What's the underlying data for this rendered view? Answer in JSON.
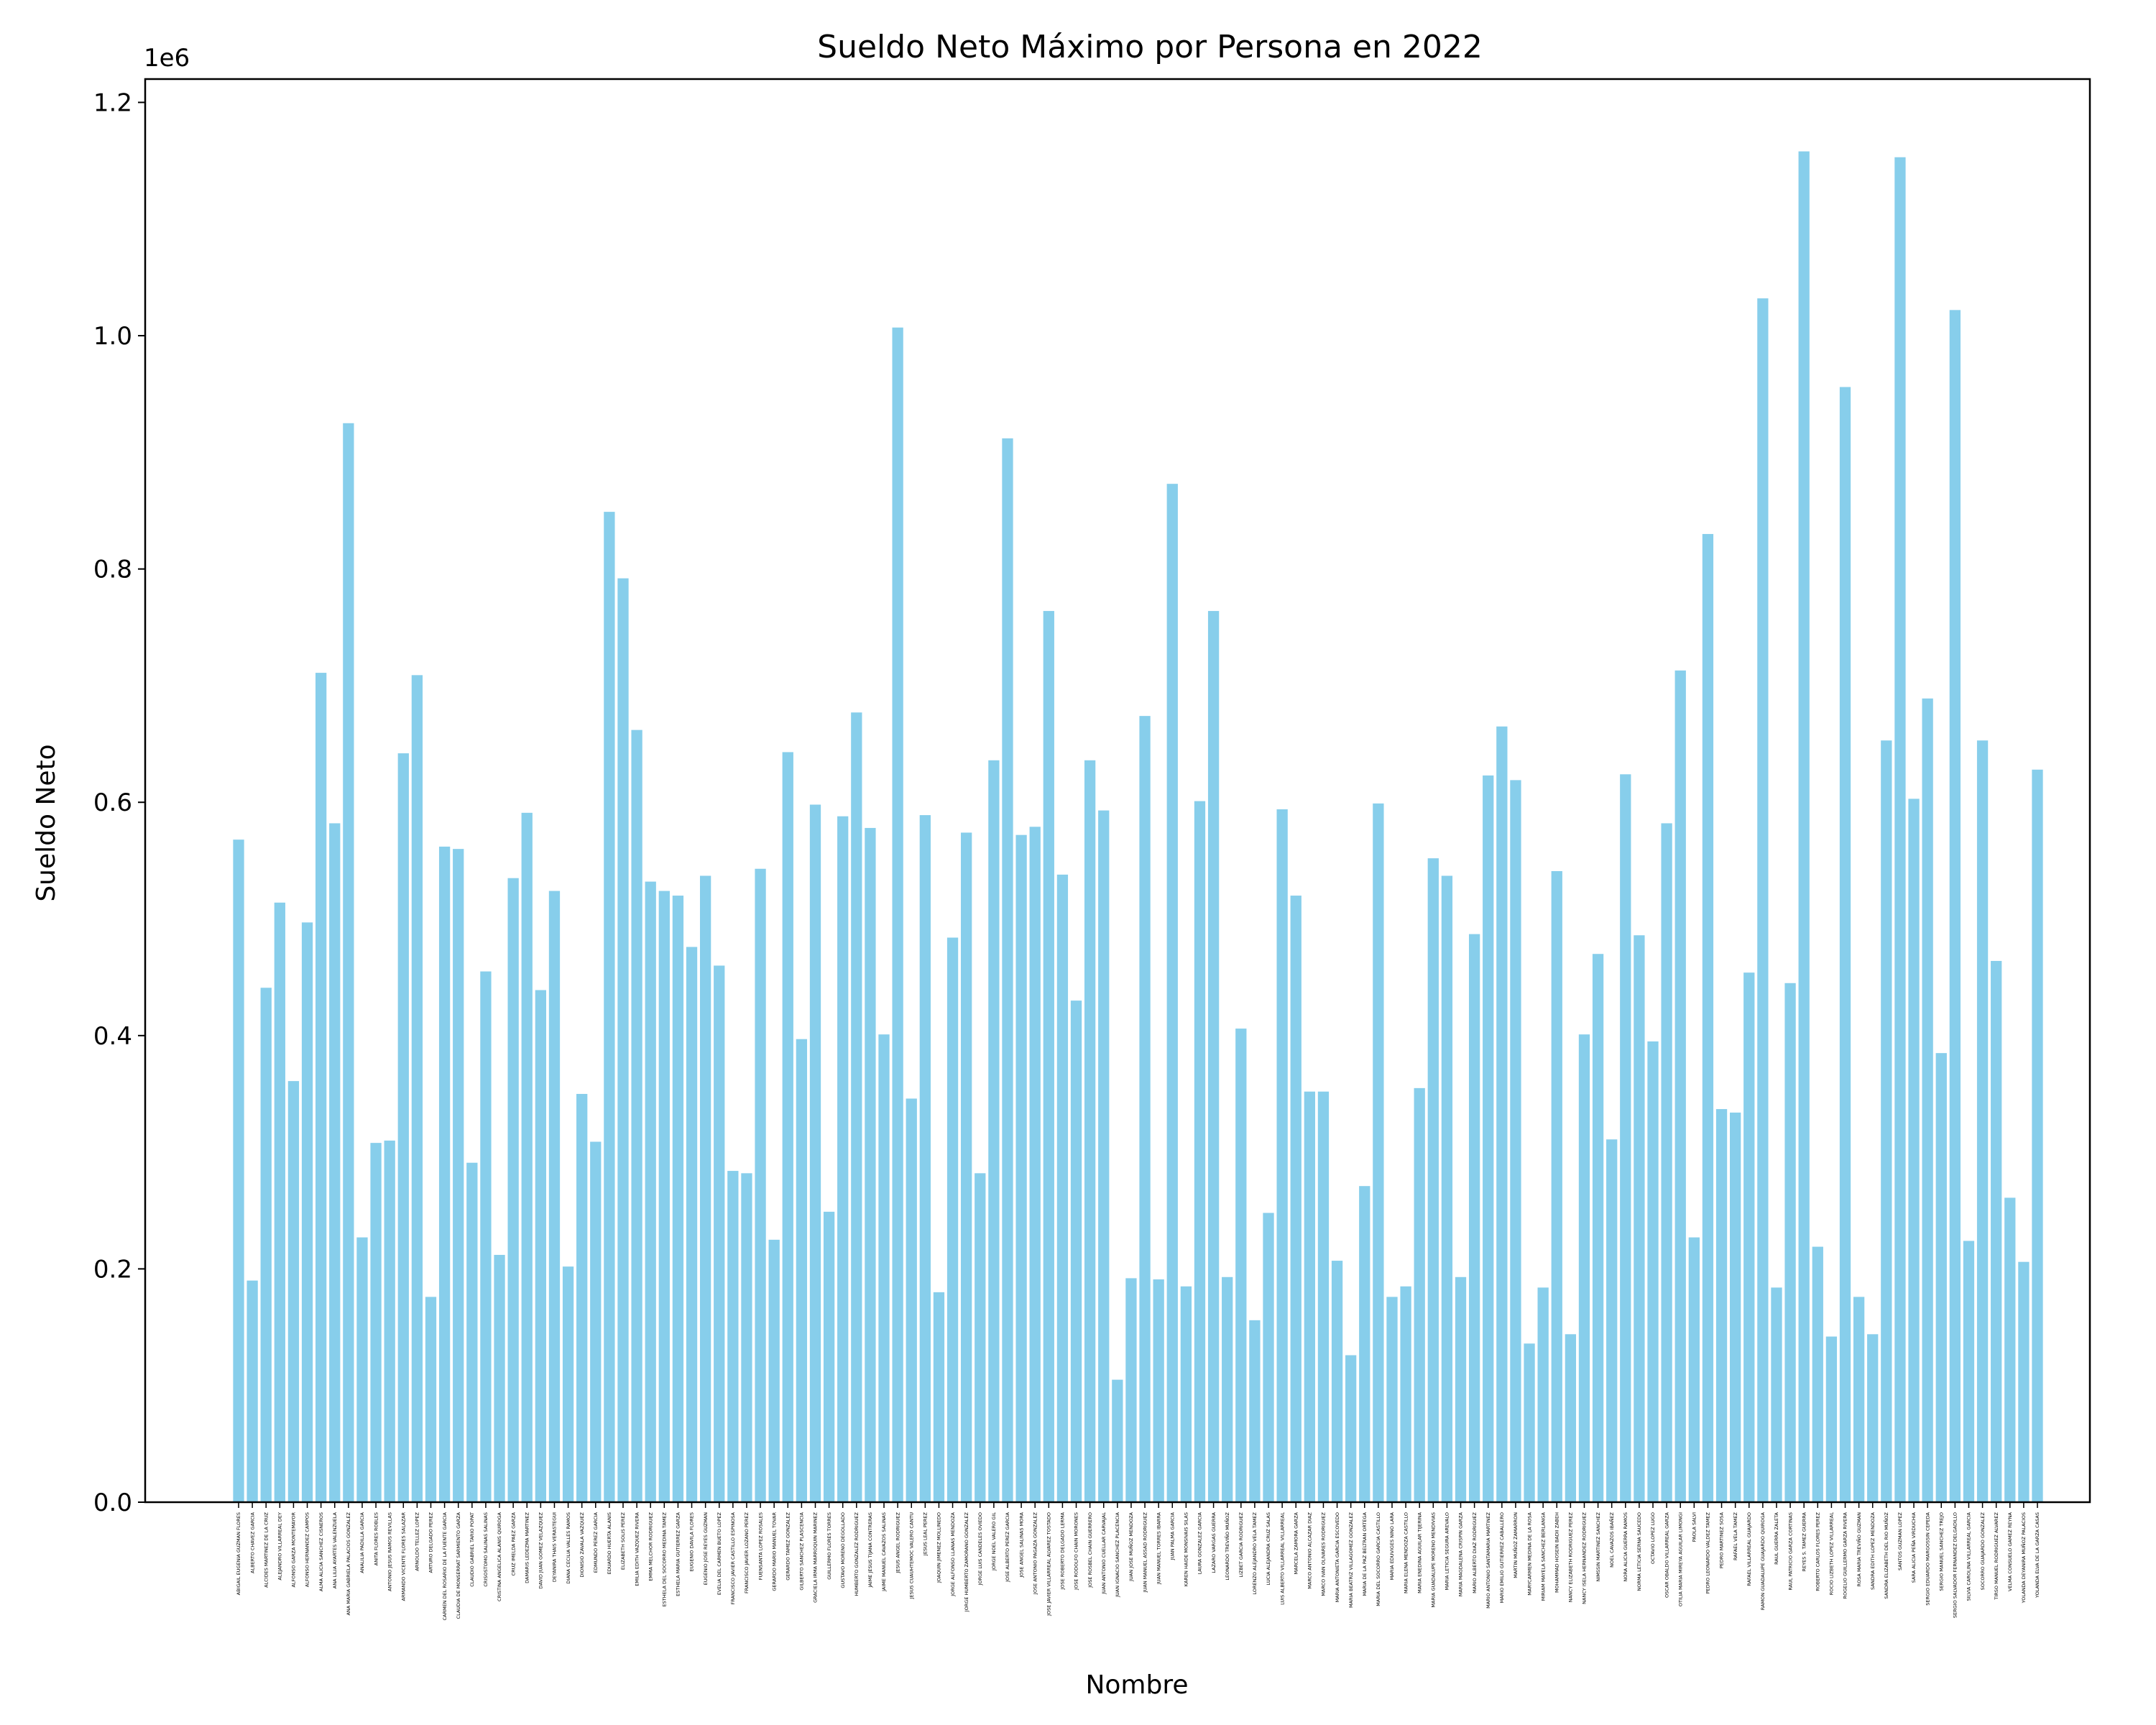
{
  "chart_data": {
    "type": "bar",
    "title": "Sueldo Neto Máximo por Persona en 2022",
    "xlabel": "Nombre",
    "ylabel": "Sueldo Neto",
    "y_offset_label": "1e6",
    "ylim": [
      0,
      1.22
    ],
    "yticks": [
      "0.0",
      "0.2",
      "0.4",
      "0.6",
      "0.8",
      "1.0",
      "1.2"
    ],
    "bar_color": "#87CEEB",
    "grid": false,
    "categories": [
      "ABIGAIL EUGENIA GUZMAN FLORES",
      "ALBERTO CHAVEZ GARCIA",
      "ALCIDES MARTINEZ DE LA CRUZ",
      "ALEJANDRO VILLARREAL DEY",
      "ALFONSO GARZA MONTEMAYOR",
      "ALFONSO HERNANDEZ CAMPOS",
      "ALMA ALICIA SANCHEZ CISNEROS",
      "ANA LILIA AYARTES VALENZUELA",
      "ANA MARIA GABRIELA PALACIOS GONZALEZ",
      "ANALILIA PADILLA GARCIA",
      "ANITA FLORES ROBLES",
      "ANTONIO JESUS RAMOS REVILLAS",
      "ARMANDO VICENTE FLORES SALAZAR",
      "ARNOLDO TELLEZ LOPEZ",
      "ARTURO DELGADO PEREZ",
      "CARMEN DEL ROSARIO DE LA FUENTE GARCIA",
      "CLAUDIA DE MONSERRAT SARMIENTO GARZA",
      "CLAUDIO GABRIEL TARIO POPAT",
      "CRISOSTOMO SALINAS SALINAS",
      "CRISTINA ANGELICA ALANIS QUIROGA",
      "CRUZ IMELDA PAEZ GARZA",
      "DAMARIS LEDEZMA MARTINEZ",
      "DAVID JUAN GOMEZ VELAZQUEZ",
      "DEYANIRA THAIS VERASTEGUI",
      "DIANA CECILIA VALLES RAMOS",
      "DIONISIO ZAVALA VAZQUEZ",
      "EDMUNDO PEREZ GARCIA",
      "EDUARDO HUERTA ALANIS",
      "ELIZABETH SOLIS PEREZ",
      "EMILIA EDITH VAZQUEZ RIVERA",
      "EMMA MELCHOR RODRIGUEZ",
      "ESTHELA DEL SOCORRO MEDINA TAMEZ",
      "ESTHELA MARIA GUTIERREZ GARZA",
      "EUGENIO DAVILA FLORES",
      "EUGENIO JOSE REYES GUZMAN",
      "EVELIA DEL CARMEN BUETO LOPEZ",
      "FRANCISCO JAVIER CASTILLO ESPINOSA",
      "FRANCISCO JAVIER LOZANO PEREZ",
      "FUENSANTA LOPEZ ROSALES",
      "GERARDO MARIO MANUEL TOVAR",
      "GERARDO TAMEZ GONZALEZ",
      "GILBERTO SANCHEZ PLASCENCIA",
      "GRACIELA IRMA MARROQUIN MARINEZ",
      "GUILLERMO FLORES TORRES",
      "GUSTAVO MORENO DEGOLLADO",
      "HUMBERTO GONZALEZ RODRIGUEZ",
      "JAIME JESUS TIJANA CONTRERAS",
      "JAIME MANUEL CAVAZOS SALINAS",
      "JESUS ANGEL RODRIGUEZ",
      "JESUS CUAUHTEMOC VALERO CANTU",
      "JESUS LEAL PEREZ",
      "JOAQUIN JIMENEZ MOLLINEDO",
      "JORGE ALFONSO LLANAS MENDOZA",
      "JORGE HUMBERTO ZAMORANO GONZALEZ",
      "JORGE LUIS CANDELES OVIEDO",
      "JORGE NOEL VALERO GIL",
      "JOSE ALBERTO PEREZ GARCIA",
      "JOSE ANGEL SALINAS MORA",
      "JOSE ANTONIO PAGAZA GONZALEZ",
      "JOSE JAVIER VILLARREAL ALVAREZ TOSTADO",
      "JOSE ROBERTO DELGADO LERMA",
      "JOSE RODOLFO CHAIN MORONES",
      "JOSE ROSBEL CHAIN GUERRERO",
      "JUAN ANTONIO CUELLAR CARVAJAL",
      "JUAN IGNACIO SANCHEZ PLACENCIA",
      "JUAN JOSE MUÑOZ MENDOZA",
      "JUAN MANUEL ASSAD RODRIGUEZ",
      "JUAN MANUEL TORRES IBARRA",
      "JUAN PALMA GARCIA",
      "KAREN HAIDE MONSIVAIS SILAS",
      "LAURA GONZALEZ GARCIA",
      "LAZARO VARGAS GUERRA",
      "LEONARDO TREVIÑO MUÑOZ",
      "LIZBET GARCIA RODRIGUEZ",
      "LORENZO ALEJANDRO VELA TAMEZ",
      "LUCIA ALEJANDRA CRUZ SALAS",
      "LUIS ALBERTO VILLARREAL VILLARREAL",
      "MARCELA ZAMORA GARZA",
      "MARCO ANTONIO ALCAZAR DIAZ",
      "MARCO IVAN OLIVARES RODRIGUEZ",
      "MARIA ANTONIETA GARCIA ESCOVEDO",
      "MARIA BEATRIZ VILLAGOMEZ GONZALEZ",
      "MARIA DE LA PAZ BELTRAN ORTEGA",
      "MARIA DEL SOCORRO GARCIA CASTILLO",
      "MARIA EDUVIGES NINO LARA",
      "MARIA ELENA MENDOZA CASTILLO",
      "MARIA ENEDINA AGUILAR TIJERINA",
      "MARIA GUADALUPE MORENO MENDIVIAS",
      "MARIA LETICIA SEGURA AREVALO",
      "MARIA MAGDALENA CRISPIN GARZA",
      "MARIO ALBERTO DIAZ RODRIGUEZ",
      "MARIO ANTONIO SANTAMARIA MARTINEZ",
      "MARIO EMILIO GUTIERREZ CABALLERO",
      "MARTIN MUÑOZ ZAMARRON",
      "MARYCARMEN MEDINA DE LA ROSA",
      "MIRIAM MAYELA SANCHEZ BERLANGA",
      "MOHAMMAD HOSEIN BADII ZABEH",
      "NANCY ELIZABETH RODRIGUEZ PEREZ",
      "NANCY ISELA HERNANDEZ RODRIGUEZ",
      "NIMSSIN MARTINEZ SANCHEZ",
      "NOEL CAVAZOS IBAÑEZ",
      "NORA ALICIA GUERRA RAMOS",
      "NORMA LETICIA SERNA SAUCEDO",
      "OCTAVIO LOPEZ LUGO",
      "OSCAR OBALDO VILLARREAL GARZA",
      "OTILIA MARIA MIREYA AGUILAR LIMONGI",
      "PAOLA SALVI",
      "PEDRO LEONARDO VALDEZ TAMEZ",
      "PEDRO MARTINEZ SOSA",
      "RAFAEL VELA TAMEZ",
      "RAFAEL VILLARREAL GUAJARDO",
      "RAMON GUADALUPE GUAJARDO QUIROGA",
      "RAUL GUERRA ZALETA",
      "RAUL PATRICIO GARZA CORTINAS",
      "REYES S. TAMEZ GUERRA",
      "ROBERTO CARLOS FLORES PEREZ",
      "ROCIO LIZBETH LOPEZ VILLARREAL",
      "ROGELIO GUILLERMO GARZA RIVERA",
      "ROSA MARIA TREVIÑO GUZMAN",
      "SANDRA EDITH LOPEZ MENDOZA",
      "SANDRA ELIZABETH DEL RIO MUÑOZ",
      "SANTOS GUZMAN LOPEZ",
      "SARA ALICIA PEÑA VIRDUCHIA",
      "SERGIO EDUARDO MARGOSSIN CEPEDA",
      "SERGIO MANUEL SANCHEZ TREJO",
      "SERGIO SALVADOR FERNANDEZ DELGADILLO",
      "SILVIA CAROLINA VILLARREAL GARCIA",
      "SOCORRO GUAJARDO GONZALEZ",
      "TIRSO MANUEL RODRIGUEZ ALVAREZ",
      "VELMA CONSUELO GAMEZ REYNA",
      "YOLANDA DEYANIRA MUÑOZ PALACIOS",
      "YOLANDA ELVA DE LA GARZA CASAS"
    ],
    "values": [
      0.568,
      0.19,
      0.441,
      0.514,
      0.361,
      0.497,
      0.711,
      0.582,
      0.925,
      0.227,
      0.308,
      0.31,
      0.642,
      0.709,
      0.176,
      0.562,
      0.56,
      0.291,
      0.455,
      0.212,
      0.535,
      0.591,
      0.439,
      0.524,
      0.202,
      0.35,
      0.309,
      0.849,
      0.792,
      0.662,
      0.532,
      0.524,
      0.52,
      0.476,
      0.537,
      0.46,
      0.284,
      0.282,
      0.543,
      0.225,
      0.643,
      0.397,
      0.598,
      0.249,
      0.588,
      0.677,
      0.578,
      0.401,
      1.007,
      0.346,
      0.589,
      0.18,
      0.484,
      0.574,
      0.282,
      0.636,
      0.912,
      0.572,
      0.579,
      0.764,
      0.538,
      0.43,
      0.636,
      0.593,
      0.105,
      0.192,
      0.674,
      0.191,
      0.873,
      0.185,
      0.601,
      0.764,
      0.193,
      0.406,
      0.156,
      0.248,
      0.594,
      0.52,
      0.352,
      0.352,
      0.207,
      0.126,
      0.271,
      0.599,
      0.176,
      0.185,
      0.355,
      0.552,
      0.537,
      0.193,
      0.487,
      0.623,
      0.665,
      0.619,
      0.136,
      0.184,
      0.541,
      0.144,
      0.401,
      0.47,
      0.311,
      0.624,
      0.486,
      0.395,
      0.582,
      0.713,
      0.227,
      0.83,
      0.337,
      0.334,
      0.454,
      1.032,
      0.184,
      0.445,
      1.158,
      0.219,
      0.142,
      0.956,
      0.176,
      0.144,
      0.653,
      1.153,
      0.603,
      0.689,
      0.385,
      1.022,
      0.224,
      0.653,
      0.464,
      0.261,
      0.206,
      0.628
    ]
  }
}
